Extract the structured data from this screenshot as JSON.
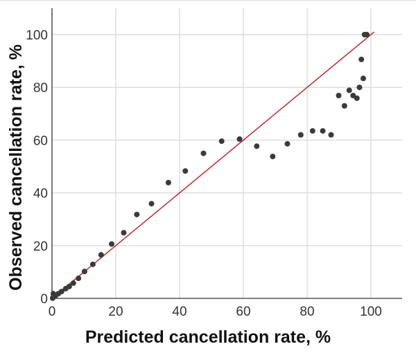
{
  "chart_data": {
    "type": "scatter",
    "title": "",
    "xlabel": "Predicted cancellation rate, %",
    "ylabel": "Observed cancellation rate, %",
    "xlim": [
      0,
      110
    ],
    "ylim": [
      0,
      110
    ],
    "xticks": [
      0,
      20,
      40,
      60,
      80,
      100
    ],
    "yticks": [
      0,
      20,
      40,
      60,
      80,
      100
    ],
    "xtick_labels": [
      "0",
      "20",
      "40",
      "60",
      "80",
      "100"
    ],
    "ytick_labels": [
      "0",
      "20",
      "40",
      "60",
      "80",
      "100"
    ],
    "grid": true,
    "reference_line": {
      "name": "identity",
      "from": [
        0,
        0
      ],
      "to": [
        101,
        101
      ],
      "color": "#c0262a"
    },
    "point_color": "#3a3a3a",
    "series": [
      {
        "name": "observed",
        "x": [
          0.2,
          0.4,
          0.4,
          0.8,
          1.1,
          2.0,
          3.0,
          4.3,
          5.4,
          6.7,
          8.3,
          10.2,
          12.8,
          15.4,
          18.7,
          22.5,
          26.6,
          31.2,
          36.5,
          41.8,
          47.5,
          53.2,
          58.8,
          64.2,
          69.2,
          73.8,
          78.0,
          81.7,
          84.9,
          87.5,
          89.9,
          91.7,
          93.2,
          94.4,
          95.6,
          96.4,
          97.0,
          97.6,
          98.0,
          98.7
        ],
        "y": [
          0.1,
          0.5,
          1.8,
          0.8,
          1.0,
          1.8,
          2.6,
          3.7,
          4.5,
          5.8,
          7.6,
          10.2,
          12.9,
          16.5,
          20.6,
          24.9,
          31.8,
          35.9,
          43.9,
          48.3,
          55.0,
          59.6,
          60.4,
          57.7,
          53.8,
          58.6,
          62.0,
          63.5,
          63.5,
          62.0,
          76.9,
          73.0,
          78.9,
          76.9,
          75.9,
          80.0,
          90.6,
          83.4,
          100.0,
          100.0
        ]
      }
    ]
  }
}
